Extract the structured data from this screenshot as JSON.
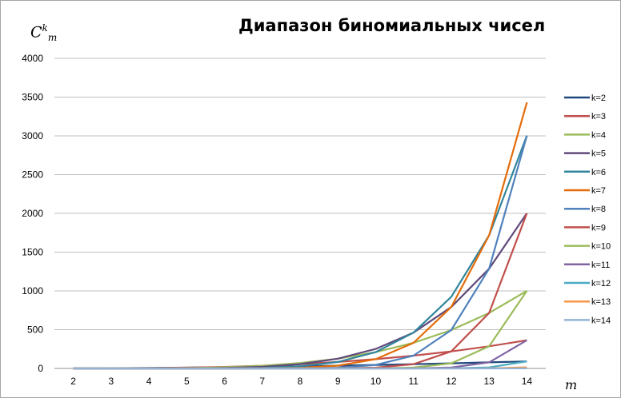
{
  "chart_data": {
    "type": "line",
    "title": "Диапазон биномиальных чисел",
    "ylabel": {
      "base": "C",
      "sup": "k",
      "sub": "m"
    },
    "xlabel": "m",
    "x": [
      2,
      3,
      4,
      5,
      6,
      7,
      8,
      9,
      10,
      11,
      12,
      13,
      14
    ],
    "ylim": [
      0,
      4000
    ],
    "yticks": [
      0,
      500,
      1000,
      1500,
      2000,
      2500,
      3000,
      3500,
      4000
    ],
    "grid": true,
    "legend_position": "right",
    "series": [
      {
        "name": "k=2",
        "color": "#1f497d",
        "values": [
          1,
          3,
          6,
          10,
          15,
          21,
          28,
          36,
          45,
          55,
          66,
          78,
          91
        ]
      },
      {
        "name": "k=3",
        "color": "#c0504d",
        "values": [
          0,
          1,
          4,
          10,
          20,
          35,
          56,
          84,
          120,
          165,
          220,
          286,
          364
        ]
      },
      {
        "name": "k=4",
        "color": "#9bbb59",
        "values": [
          0,
          0,
          1,
          5,
          15,
          35,
          70,
          126,
          210,
          330,
          495,
          715,
          1001
        ]
      },
      {
        "name": "k=5",
        "color": "#604a7b",
        "values": [
          0,
          0,
          0,
          1,
          6,
          21,
          56,
          126,
          252,
          462,
          792,
          1287,
          2002
        ]
      },
      {
        "name": "k=6",
        "color": "#31859c",
        "values": [
          0,
          0,
          0,
          0,
          1,
          7,
          28,
          84,
          210,
          462,
          924,
          1716,
          3003
        ]
      },
      {
        "name": "k=7",
        "color": "#e46c0a",
        "values": [
          0,
          0,
          0,
          0,
          0,
          1,
          8,
          36,
          120,
          330,
          792,
          1716,
          3432
        ]
      },
      {
        "name": "k=8",
        "color": "#4f81bd",
        "values": [
          0,
          0,
          0,
          0,
          0,
          0,
          1,
          9,
          45,
          165,
          495,
          1287,
          3003
        ]
      },
      {
        "name": "k=9",
        "color": "#c0504d",
        "values": [
          0,
          0,
          0,
          0,
          0,
          0,
          0,
          1,
          10,
          55,
          220,
          715,
          2002
        ]
      },
      {
        "name": "k=10",
        "color": "#9bbb59",
        "values": [
          0,
          0,
          0,
          0,
          0,
          0,
          0,
          0,
          1,
          11,
          66,
          286,
          1001
        ]
      },
      {
        "name": "k=11",
        "color": "#8064a2",
        "values": [
          0,
          0,
          0,
          0,
          0,
          0,
          0,
          0,
          0,
          1,
          12,
          78,
          364
        ]
      },
      {
        "name": "k=12",
        "color": "#4bacc6",
        "values": [
          0,
          0,
          0,
          0,
          0,
          0,
          0,
          0,
          0,
          0,
          1,
          13,
          91
        ]
      },
      {
        "name": "k=13",
        "color": "#f79646",
        "values": [
          0,
          0,
          0,
          0,
          0,
          0,
          0,
          0,
          0,
          0,
          0,
          1,
          14
        ]
      },
      {
        "name": "k=14",
        "color": "#95b3d7",
        "values": [
          0,
          0,
          0,
          0,
          0,
          0,
          0,
          0,
          0,
          0,
          0,
          0,
          1
        ]
      }
    ]
  }
}
